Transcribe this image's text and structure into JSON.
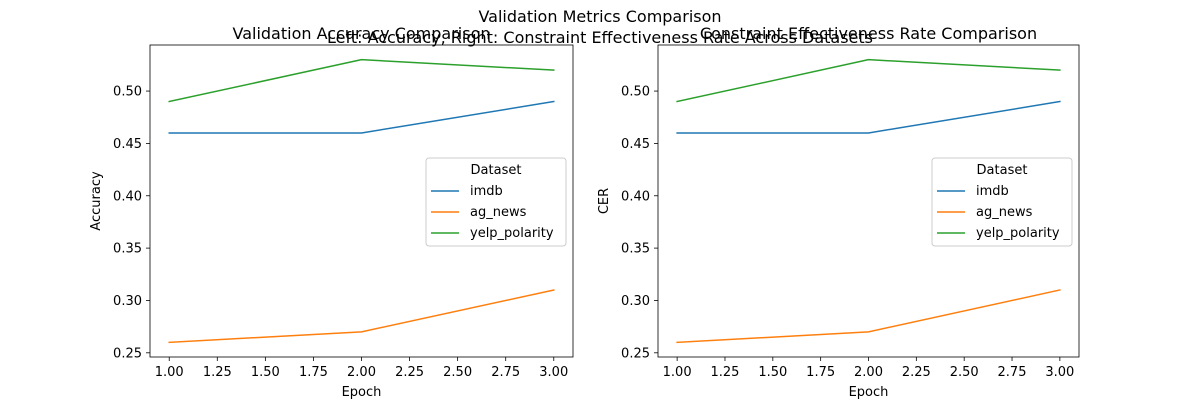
{
  "figure": {
    "suptitle_line1": "Validation Metrics Comparison",
    "suptitle_line2": "Left: Accuracy, Right: Constraint Effectiveness Rate Across Datasets"
  },
  "chart_data": [
    {
      "type": "line",
      "title": "Validation Accuracy Comparison",
      "xlabel": "Epoch",
      "ylabel": "Accuracy",
      "x": [
        1,
        2,
        3
      ],
      "xticks": [
        "1.00",
        "1.25",
        "1.50",
        "1.75",
        "2.00",
        "2.25",
        "2.50",
        "2.75",
        "3.00"
      ],
      "yticks": [
        "0.25",
        "0.30",
        "0.35",
        "0.40",
        "0.45",
        "0.50"
      ],
      "xlim": [
        0.9,
        3.1
      ],
      "ylim": [
        0.246,
        0.544
      ],
      "grid": false,
      "legend": {
        "title": "Dataset",
        "position": "center-right"
      },
      "series": [
        {
          "name": "imdb",
          "color": "#1f77b4",
          "values": [
            0.46,
            0.46,
            0.49
          ]
        },
        {
          "name": "ag_news",
          "color": "#ff7f0e",
          "values": [
            0.26,
            0.27,
            0.31
          ]
        },
        {
          "name": "yelp_polarity",
          "color": "#2ca02c",
          "values": [
            0.49,
            0.53,
            0.52
          ]
        }
      ]
    },
    {
      "type": "line",
      "title": "Constraint Effectiveness Rate Comparison",
      "xlabel": "Epoch",
      "ylabel": "CER",
      "x": [
        1,
        2,
        3
      ],
      "xticks": [
        "1.00",
        "1.25",
        "1.50",
        "1.75",
        "2.00",
        "2.25",
        "2.50",
        "2.75",
        "3.00"
      ],
      "yticks": [
        "0.25",
        "0.30",
        "0.35",
        "0.40",
        "0.45",
        "0.50"
      ],
      "xlim": [
        0.9,
        3.1
      ],
      "ylim": [
        0.246,
        0.544
      ],
      "grid": false,
      "legend": {
        "title": "Dataset",
        "position": "center-right"
      },
      "series": [
        {
          "name": "imdb",
          "color": "#1f77b4",
          "values": [
            0.46,
            0.46,
            0.49
          ]
        },
        {
          "name": "ag_news",
          "color": "#ff7f0e",
          "values": [
            0.26,
            0.27,
            0.31
          ]
        },
        {
          "name": "yelp_polarity",
          "color": "#2ca02c",
          "values": [
            0.49,
            0.53,
            0.52
          ]
        }
      ]
    }
  ]
}
